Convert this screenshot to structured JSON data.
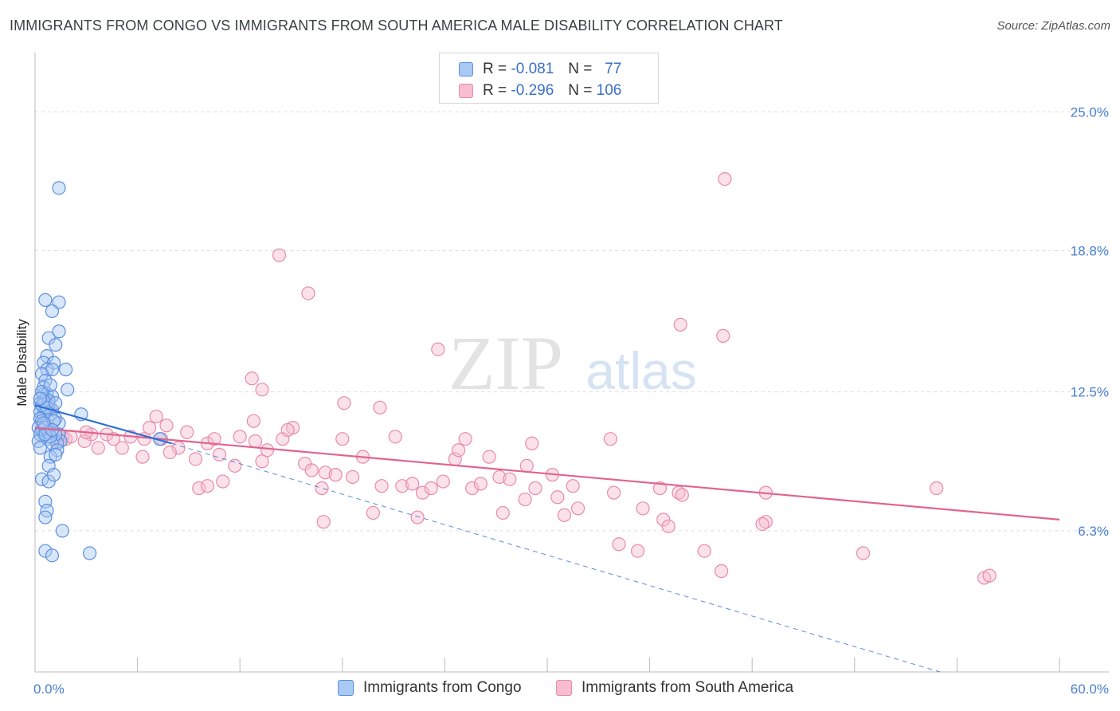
{
  "header": {
    "title": "IMMIGRANTS FROM CONGO VS IMMIGRANTS FROM SOUTH AMERICA MALE DISABILITY CORRELATION CHART",
    "source": "Source: ZipAtlas.com"
  },
  "watermark": {
    "zip": "ZIP",
    "atlas": "atlas"
  },
  "legend_top": {
    "rows": [
      {
        "r_label": "R =",
        "r_value": "-0.081",
        "n_label": "N =",
        "n_value": "77"
      },
      {
        "r_label": "R =",
        "r_value": "-0.296",
        "n_label": "N =",
        "n_value": "106"
      }
    ]
  },
  "legend_bottom": {
    "congo": "Immigrants from Congo",
    "south_america": "Immigrants from South America"
  },
  "colors": {
    "congo_fill": "#a9c8f2",
    "congo_stroke": "#5b8fe0",
    "congo_line": "#2f6fd6",
    "sa_fill": "#f7bdd0",
    "sa_stroke": "#e98aa8",
    "sa_line": "#e0648e",
    "tick": "#4a7fd0",
    "grid": "#dedede"
  },
  "chart_data": {
    "type": "scatter",
    "title": "IMMIGRANTS FROM CONGO VS IMMIGRANTS FROM SOUTH AMERICA MALE DISABILITY CORRELATION CHART",
    "xlabel": "",
    "ylabel": "Male Disability",
    "xlim": [
      0,
      60
    ],
    "ylim": [
      0,
      27.5
    ],
    "x_tick_labels": [
      "0.0%",
      "60.0%"
    ],
    "y_ticks": [
      6.3,
      12.5,
      18.8,
      25.0
    ],
    "y_tick_labels": [
      "6.3%",
      "12.5%",
      "18.8%",
      "25.0%"
    ],
    "grid": true,
    "legend_position": "top-center",
    "series": [
      {
        "name": "Immigrants from Congo",
        "r": -0.081,
        "n": 77,
        "trend_solid": [
          [
            0.0,
            11.9
          ],
          [
            8.0,
            10.2
          ]
        ],
        "trend_dashed": [
          [
            8.0,
            10.2
          ],
          [
            53.0,
            0.0
          ]
        ],
        "points": [
          [
            1.4,
            21.6
          ],
          [
            0.6,
            16.6
          ],
          [
            1.4,
            16.5
          ],
          [
            1.0,
            16.1
          ],
          [
            1.4,
            15.2
          ],
          [
            0.8,
            14.9
          ],
          [
            1.2,
            14.6
          ],
          [
            0.7,
            14.1
          ],
          [
            0.5,
            13.8
          ],
          [
            1.1,
            13.8
          ],
          [
            0.7,
            13.5
          ],
          [
            1.8,
            13.5
          ],
          [
            1.0,
            13.5
          ],
          [
            0.4,
            13.3
          ],
          [
            0.6,
            13.0
          ],
          [
            0.5,
            12.7
          ],
          [
            1.9,
            12.6
          ],
          [
            0.5,
            12.4
          ],
          [
            0.7,
            12.4
          ],
          [
            0.6,
            12.2
          ],
          [
            1.0,
            12.3
          ],
          [
            0.3,
            12.0
          ],
          [
            0.6,
            12.0
          ],
          [
            0.8,
            11.9
          ],
          [
            0.6,
            11.7
          ],
          [
            1.0,
            11.7
          ],
          [
            0.3,
            11.6
          ],
          [
            0.5,
            11.5
          ],
          [
            0.9,
            11.5
          ],
          [
            0.3,
            11.3
          ],
          [
            1.2,
            11.3
          ],
          [
            0.4,
            11.2
          ],
          [
            0.6,
            11.0
          ],
          [
            0.2,
            10.9
          ],
          [
            0.4,
            10.8
          ],
          [
            1.4,
            11.1
          ],
          [
            0.5,
            10.6
          ],
          [
            0.7,
            10.4
          ],
          [
            0.3,
            10.6
          ],
          [
            0.2,
            10.3
          ],
          [
            0.3,
            10.0
          ],
          [
            1.4,
            10.6
          ],
          [
            1.5,
            10.3
          ],
          [
            1.3,
            10.2
          ],
          [
            1.2,
            10.6
          ],
          [
            0.8,
            10.7
          ],
          [
            1.0,
            10.2
          ],
          [
            1.3,
            9.9
          ],
          [
            0.9,
            9.6
          ],
          [
            0.8,
            9.2
          ],
          [
            1.2,
            9.7
          ],
          [
            2.7,
            11.5
          ],
          [
            7.3,
            10.4
          ],
          [
            0.6,
            10.9
          ],
          [
            0.4,
            11.9
          ],
          [
            0.8,
            12.1
          ],
          [
            0.5,
            12.1
          ],
          [
            1.1,
            11.2
          ],
          [
            0.9,
            10.5
          ],
          [
            0.6,
            10.6
          ],
          [
            1.0,
            10.8
          ],
          [
            0.4,
            8.6
          ],
          [
            0.8,
            8.5
          ],
          [
            1.1,
            8.8
          ],
          [
            0.6,
            7.6
          ],
          [
            0.7,
            7.2
          ],
          [
            0.6,
            6.9
          ],
          [
            1.6,
            6.3
          ],
          [
            0.6,
            5.4
          ],
          [
            1.0,
            5.2
          ],
          [
            3.2,
            5.3
          ],
          [
            0.4,
            12.5
          ],
          [
            0.7,
            11.8
          ],
          [
            0.5,
            11.1
          ],
          [
            0.9,
            12.8
          ],
          [
            0.3,
            12.2
          ],
          [
            1.2,
            12.0
          ]
        ]
      },
      {
        "name": "Immigrants from South America",
        "r": -0.296,
        "n": 106,
        "trend_solid": [
          [
            0.0,
            10.9
          ],
          [
            60.0,
            6.8
          ]
        ],
        "points": [
          [
            40.4,
            22.0
          ],
          [
            14.3,
            18.6
          ],
          [
            16.0,
            16.9
          ],
          [
            37.8,
            15.5
          ],
          [
            40.3,
            15.0
          ],
          [
            23.6,
            14.4
          ],
          [
            13.3,
            12.6
          ],
          [
            12.7,
            13.1
          ],
          [
            18.1,
            12.0
          ],
          [
            20.2,
            11.8
          ],
          [
            0.8,
            11.0
          ],
          [
            1.4,
            10.6
          ],
          [
            0.9,
            11.7
          ],
          [
            1.8,
            10.4
          ],
          [
            1.6,
            10.5
          ],
          [
            3.3,
            10.6
          ],
          [
            2.9,
            10.3
          ],
          [
            2.1,
            10.5
          ],
          [
            1.0,
            10.8
          ],
          [
            1.3,
            10.3
          ],
          [
            3.7,
            10.0
          ],
          [
            4.2,
            10.6
          ],
          [
            4.6,
            10.4
          ],
          [
            5.1,
            10.0
          ],
          [
            5.6,
            10.5
          ],
          [
            6.4,
            10.4
          ],
          [
            6.7,
            10.9
          ],
          [
            7.7,
            11.0
          ],
          [
            7.4,
            10.4
          ],
          [
            8.4,
            10.0
          ],
          [
            8.9,
            10.7
          ],
          [
            10.1,
            10.2
          ],
          [
            10.5,
            10.4
          ],
          [
            10.8,
            9.7
          ],
          [
            11.7,
            9.2
          ],
          [
            13.3,
            9.4
          ],
          [
            13.6,
            9.9
          ],
          [
            14.5,
            10.4
          ],
          [
            15.1,
            10.9
          ],
          [
            15.8,
            9.3
          ],
          [
            16.8,
            8.2
          ],
          [
            16.2,
            9.0
          ],
          [
            17.0,
            8.9
          ],
          [
            17.6,
            8.8
          ],
          [
            18.0,
            10.4
          ],
          [
            18.6,
            8.7
          ],
          [
            19.2,
            9.6
          ],
          [
            20.3,
            8.3
          ],
          [
            21.5,
            8.3
          ],
          [
            22.1,
            8.4
          ],
          [
            22.7,
            8.0
          ],
          [
            23.2,
            8.2
          ],
          [
            23.9,
            8.5
          ],
          [
            24.6,
            9.5
          ],
          [
            25.2,
            10.4
          ],
          [
            25.6,
            8.2
          ],
          [
            26.6,
            9.6
          ],
          [
            27.2,
            8.7
          ],
          [
            27.8,
            8.6
          ],
          [
            28.8,
            9.2
          ],
          [
            29.3,
            8.2
          ],
          [
            30.3,
            8.8
          ],
          [
            31.0,
            7.0
          ],
          [
            31.5,
            8.3
          ],
          [
            31.8,
            7.3
          ],
          [
            33.9,
            8.0
          ],
          [
            34.2,
            5.7
          ],
          [
            35.3,
            5.4
          ],
          [
            35.6,
            7.3
          ],
          [
            36.8,
            6.8
          ],
          [
            37.1,
            6.5
          ],
          [
            37.7,
            8.0
          ],
          [
            39.2,
            5.4
          ],
          [
            40.2,
            4.5
          ],
          [
            42.8,
            6.7
          ],
          [
            42.6,
            6.6
          ],
          [
            42.8,
            8.0
          ],
          [
            48.5,
            5.3
          ],
          [
            52.8,
            8.2
          ],
          [
            55.6,
            4.2
          ],
          [
            55.9,
            4.3
          ],
          [
            9.4,
            9.5
          ],
          [
            9.6,
            8.2
          ],
          [
            10.1,
            8.3
          ],
          [
            11.0,
            8.5
          ],
          [
            12.0,
            10.5
          ],
          [
            12.9,
            10.3
          ],
          [
            7.1,
            11.4
          ],
          [
            6.3,
            9.6
          ],
          [
            7.9,
            9.8
          ],
          [
            14.8,
            10.8
          ],
          [
            19.8,
            7.1
          ],
          [
            16.9,
            6.7
          ],
          [
            27.4,
            7.1
          ],
          [
            28.7,
            7.7
          ],
          [
            30.6,
            7.8
          ],
          [
            33.7,
            10.4
          ],
          [
            36.6,
            8.2
          ],
          [
            37.9,
            7.9
          ],
          [
            26.1,
            8.4
          ],
          [
            21.1,
            10.5
          ],
          [
            24.8,
            9.9
          ],
          [
            22.4,
            6.9
          ],
          [
            12.8,
            11.2
          ],
          [
            3.0,
            10.7
          ],
          [
            29.1,
            10.2
          ]
        ]
      }
    ]
  }
}
